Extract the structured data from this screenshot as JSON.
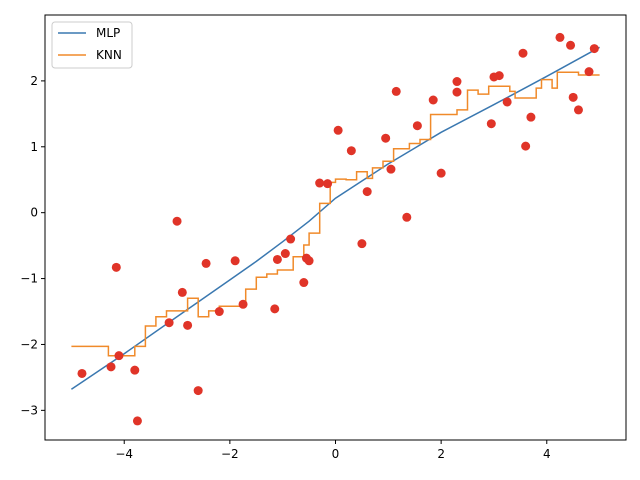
{
  "chart_data": {
    "type": "line",
    "xlim": [
      -5.5,
      5.5
    ],
    "ylim": [
      -3.45,
      3.0
    ],
    "xticks": [
      -4,
      -2,
      0,
      2,
      4
    ],
    "yticks": [
      -3,
      -2,
      -1,
      0,
      1,
      2
    ],
    "xtick_labels": [
      "−4",
      "−2",
      "0",
      "2",
      "4"
    ],
    "ytick_labels": [
      "−3",
      "−2",
      "−1",
      "0",
      "1",
      "2"
    ],
    "grid": false,
    "legend_position": "upper-left",
    "series": [
      {
        "name": "MLP",
        "kind": "line",
        "color": "#3a78b0",
        "x": [
          -5.0,
          -4.0,
          -3.0,
          -2.0,
          -1.5,
          -1.0,
          -0.5,
          0.0,
          0.5,
          1.0,
          1.5,
          2.0,
          3.0,
          4.0,
          5.0
        ],
        "y": [
          -2.68,
          -2.14,
          -1.58,
          -1.02,
          -0.74,
          -0.44,
          -0.13,
          0.22,
          0.48,
          0.74,
          0.98,
          1.22,
          1.64,
          2.07,
          2.51
        ]
      },
      {
        "name": "KNN",
        "kind": "step",
        "color": "#f08a2a",
        "x": [
          -5.0,
          -4.3,
          -4.3,
          -3.8,
          -3.8,
          -3.6,
          -3.6,
          -3.4,
          -3.4,
          -3.2,
          -3.2,
          -3.0,
          -3.0,
          -2.8,
          -2.8,
          -2.6,
          -2.6,
          -2.4,
          -2.4,
          -2.2,
          -2.2,
          -1.9,
          -1.9,
          -1.7,
          -1.7,
          -1.5,
          -1.5,
          -1.3,
          -1.3,
          -1.1,
          -1.1,
          -0.8,
          -0.8,
          -0.6,
          -0.6,
          -0.5,
          -0.5,
          -0.3,
          -0.3,
          -0.1,
          -0.1,
          0.0,
          0.0,
          0.2,
          0.2,
          0.4,
          0.4,
          0.6,
          0.6,
          0.7,
          0.7,
          0.9,
          0.9,
          1.1,
          1.1,
          1.4,
          1.4,
          1.6,
          1.6,
          1.8,
          1.8,
          2.3,
          2.3,
          2.5,
          2.5,
          2.7,
          2.7,
          2.9,
          2.9,
          3.3,
          3.3,
          3.4,
          3.4,
          3.8,
          3.8,
          3.9,
          3.9,
          4.1,
          4.1,
          4.2,
          4.2,
          4.6,
          4.6,
          5.0
        ],
        "y": [
          -2.03,
          -2.03,
          -2.17,
          -2.17,
          -2.03,
          -2.03,
          -1.72,
          -1.72,
          -1.58,
          -1.58,
          -1.49,
          -1.49,
          -1.49,
          -1.49,
          -1.3,
          -1.3,
          -1.58,
          -1.58,
          -1.49,
          -1.49,
          -1.42,
          -1.42,
          -1.42,
          -1.42,
          -1.16,
          -1.16,
          -0.98,
          -0.98,
          -0.93,
          -0.93,
          -0.87,
          -0.87,
          -0.67,
          -0.67,
          -0.49,
          -0.49,
          -0.31,
          -0.31,
          0.14,
          0.14,
          0.46,
          0.46,
          0.51,
          0.51,
          0.5,
          0.5,
          0.62,
          0.62,
          0.52,
          0.52,
          0.68,
          0.68,
          0.78,
          0.78,
          0.97,
          0.97,
          1.05,
          1.05,
          1.11,
          1.11,
          1.49,
          1.49,
          1.56,
          1.56,
          1.86,
          1.86,
          1.8,
          1.8,
          1.92,
          1.92,
          1.84,
          1.84,
          1.74,
          1.74,
          1.89,
          1.89,
          2.02,
          2.02,
          1.89,
          1.89,
          2.13,
          2.13,
          2.09,
          2.09
        ]
      },
      {
        "name": "",
        "kind": "scatter",
        "color": "#e03428",
        "x": [
          -4.8,
          -4.25,
          -4.15,
          -4.1,
          -3.8,
          -3.75,
          -3.15,
          -3.0,
          -2.9,
          -2.8,
          -2.6,
          -2.45,
          -2.2,
          -1.9,
          -1.75,
          -1.15,
          -1.1,
          -0.95,
          -0.85,
          -0.6,
          -0.55,
          -0.5,
          -0.3,
          -0.15,
          0.05,
          0.3,
          0.5,
          0.6,
          0.95,
          1.05,
          1.15,
          1.35,
          1.55,
          1.85,
          2.0,
          2.3,
          2.3,
          2.95,
          3.0,
          3.1,
          3.25,
          3.55,
          3.6,
          3.7,
          4.25,
          4.45,
          4.5,
          4.6,
          4.8,
          4.9
        ],
        "y": [
          -2.44,
          -2.34,
          -0.83,
          -2.17,
          -2.39,
          -3.16,
          -1.67,
          -0.13,
          -1.21,
          -1.71,
          -2.7,
          -0.77,
          -1.5,
          -0.73,
          -1.39,
          -1.46,
          -0.71,
          -0.62,
          -0.4,
          -1.06,
          -0.69,
          -0.73,
          0.45,
          0.44,
          1.25,
          0.94,
          -0.47,
          0.32,
          1.13,
          0.66,
          1.84,
          -0.07,
          1.32,
          1.71,
          0.6,
          1.99,
          1.83,
          1.35,
          2.06,
          2.08,
          1.68,
          2.42,
          1.01,
          1.45,
          2.66,
          2.54,
          1.75,
          1.56,
          2.14,
          2.49
        ]
      }
    ]
  }
}
